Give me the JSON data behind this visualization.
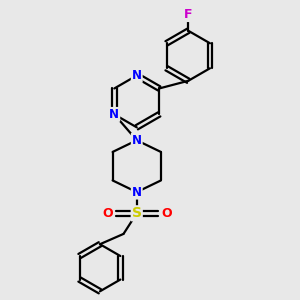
{
  "background_color": "#e8e8e8",
  "bond_color": "#000000",
  "N_color": "#0000ff",
  "O_color": "#ff0000",
  "S_color": "#cccc00",
  "F_color": "#cc00cc",
  "line_width": 1.6,
  "figsize": [
    3.0,
    3.0
  ],
  "dpi": 100,
  "xlim": [
    0,
    10
  ],
  "ylim": [
    0,
    10
  ]
}
